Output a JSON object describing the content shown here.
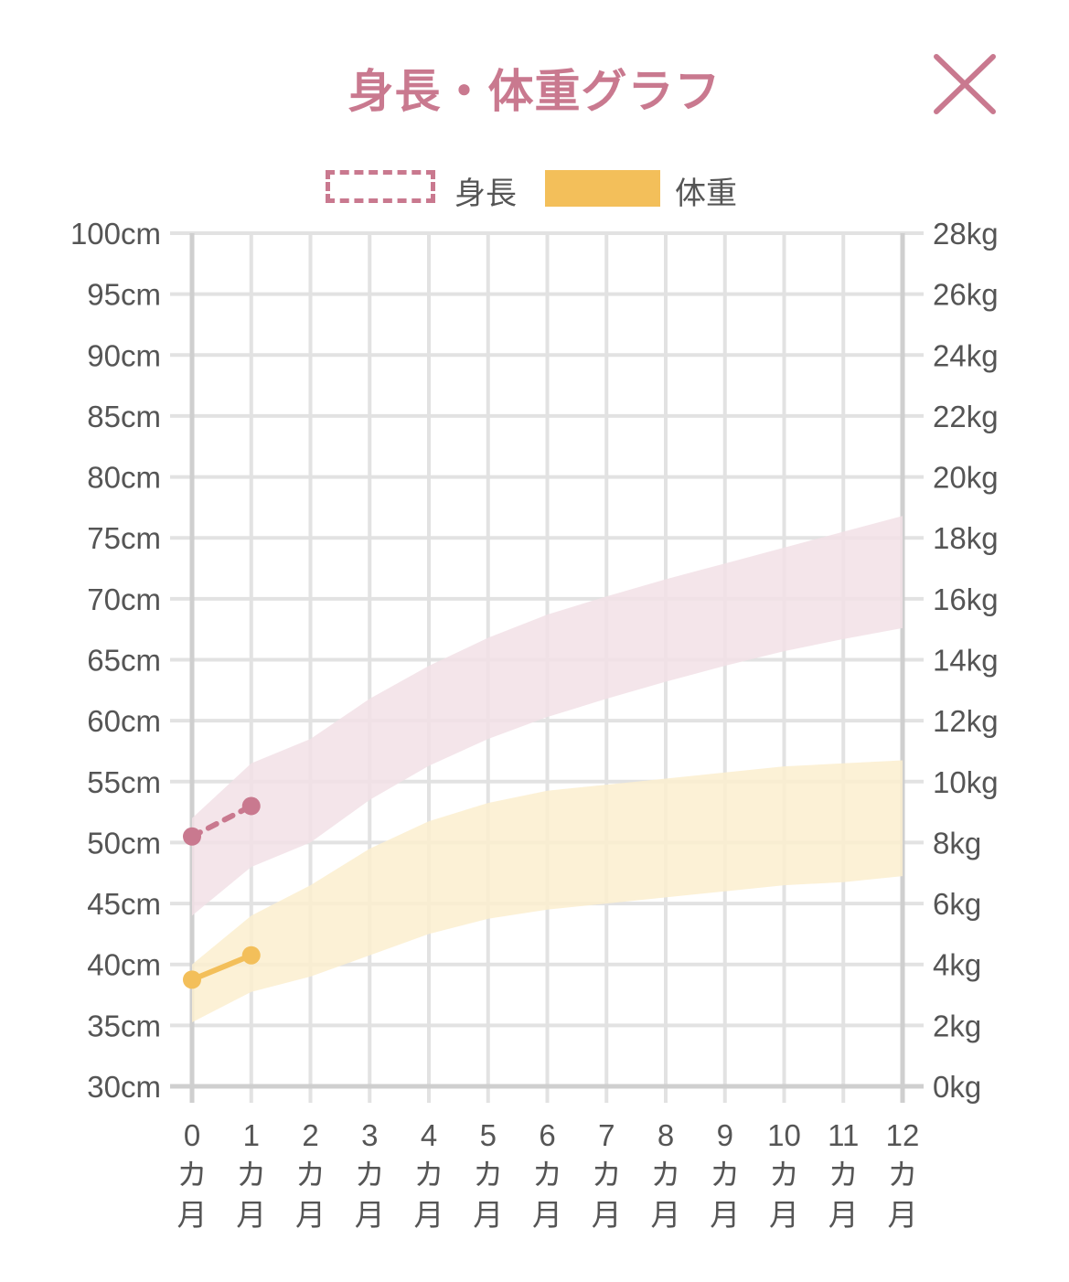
{
  "header": {
    "title": "身長・体重グラフ",
    "close_icon": "close-icon"
  },
  "legend": {
    "height_label": "身長",
    "weight_label": "体重"
  },
  "colors": {
    "height": "#c9798f",
    "height_band": "#f2e1e6",
    "weight": "#f3bf5a",
    "weight_band": "#fcefcf",
    "grid": "#e2e2e2",
    "axis": "#cfcfcf"
  },
  "chart_data": {
    "type": "line",
    "x": [
      0,
      1,
      2,
      3,
      4,
      5,
      6,
      7,
      8,
      9,
      10,
      11,
      12
    ],
    "x_tick_labels": [
      "0",
      "1",
      "2",
      "3",
      "4",
      "5",
      "6",
      "7",
      "8",
      "9",
      "10",
      "11",
      "12"
    ],
    "x_unit_chars": [
      "カ",
      "月"
    ],
    "y_left": {
      "unit": "cm",
      "lim": [
        30,
        100
      ],
      "ticks": [
        100,
        95,
        90,
        85,
        80,
        75,
        70,
        65,
        60,
        55,
        50,
        45,
        40,
        35,
        30
      ],
      "tick_labels": [
        "100cm",
        "95cm",
        "90cm",
        "85cm",
        "80cm",
        "75cm",
        "70cm",
        "65cm",
        "60cm",
        "55cm",
        "50cm",
        "45cm",
        "40cm",
        "35cm",
        "30cm"
      ]
    },
    "y_right": {
      "unit": "kg",
      "lim": [
        0,
        28
      ],
      "ticks": [
        28,
        26,
        24,
        22,
        20,
        18,
        16,
        14,
        12,
        10,
        8,
        6,
        4,
        2,
        0
      ],
      "tick_labels": [
        "28kg",
        "26kg",
        "24kg",
        "22kg",
        "20kg",
        "18kg",
        "16kg",
        "14kg",
        "12kg",
        "10kg",
        "8kg",
        "6kg",
        "4kg",
        "2kg",
        "0kg"
      ]
    },
    "grid": true,
    "height_band": {
      "x": [
        0,
        1,
        2,
        3,
        4,
        5,
        6,
        7,
        8,
        9,
        10,
        11,
        12
      ],
      "upper": [
        52,
        56.5,
        58.5,
        61.8,
        64.5,
        66.8,
        68.7,
        70.2,
        71.6,
        72.9,
        74.2,
        75.5,
        76.8
      ],
      "lower": [
        44,
        48,
        50,
        53.5,
        56.3,
        58.5,
        60.3,
        61.8,
        63.2,
        64.5,
        65.7,
        66.7,
        67.6
      ]
    },
    "weight_band": {
      "x": [
        0,
        1,
        2,
        3,
        4,
        5,
        6,
        7,
        8,
        9,
        10,
        11,
        12
      ],
      "upper": [
        4.0,
        5.6,
        6.6,
        7.8,
        8.7,
        9.3,
        9.7,
        9.9,
        10.1,
        10.3,
        10.5,
        10.6,
        10.7
      ],
      "lower": [
        2.1,
        3.1,
        3.6,
        4.3,
        5.0,
        5.5,
        5.8,
        6.0,
        6.2,
        6.4,
        6.6,
        6.7,
        6.9
      ]
    },
    "series": [
      {
        "name": "身長",
        "axis": "left",
        "style": "dashed",
        "x": [
          0,
          1
        ],
        "values": [
          50.5,
          53.0
        ]
      },
      {
        "name": "体重",
        "axis": "right",
        "style": "solid",
        "x": [
          0,
          1
        ],
        "values": [
          3.5,
          4.3
        ]
      }
    ]
  }
}
